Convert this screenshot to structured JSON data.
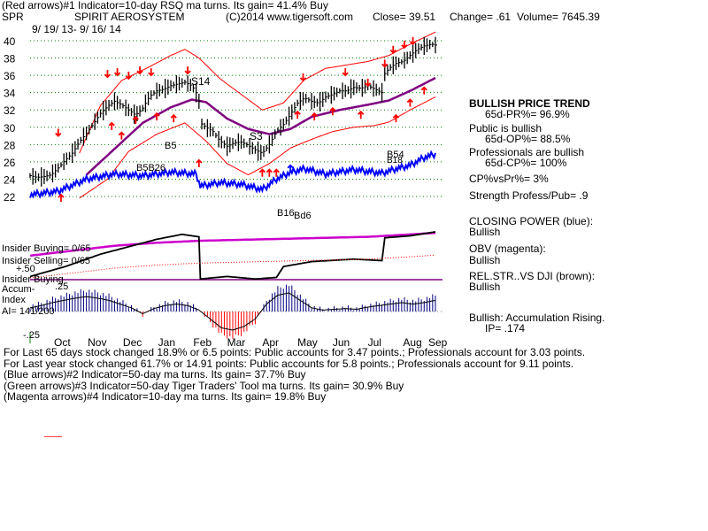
{
  "header": {
    "line1": "(Red arrows)#1 Indicator=10-day RSQ ma turns. Its gain= 41.4% Buy",
    "symbol": "SPR",
    "name": "SPIRIT AEROSYSTEM",
    "copyright": "(C)2014 www.tigersoft.com",
    "close": "Close=  39.51",
    "change": "Change= .61",
    "volume": "Volume= 7645.39",
    "dates": "9/ 19/ 13-  9/ 16/ 14"
  },
  "annotations": {
    "s14": "S14",
    "s3": "S3",
    "b5": "B5",
    "b5b26": "B5B26",
    "b54": "B54",
    "b18": "B18",
    "b_lower": "B16",
    "b_lower2": "Bd6"
  },
  "panel_labels": {
    "insider_buying_1": "Insider Buying= 0/65",
    "insider_selling": "Insider Selling= 0/65",
    "plus50": "+.50",
    "insider_buying_2": "Insider Buying",
    "accum_index_1": "Accum-",
    "accum_index_2": "Index",
    "plus25": ".25",
    "ai": "AI= 141/200",
    "minus25": "-.25"
  },
  "right_panel": [
    {
      "text": "BULLISH PRICE TREND",
      "bold": true
    },
    {
      "text": "65d-PR%= 96.9%",
      "indent": true
    },
    {
      "text": "Public is bullish"
    },
    {
      "text": "65d-OP%= 88.5%",
      "indent": true
    },
    {
      "text": "Professionals are bullish"
    },
    {
      "text": "65d-CP%= 100%",
      "indent": true
    },
    {
      "text": "CP%vsPr%=  3%"
    },
    {
      "text": "Strength Profess/Pub= .9"
    },
    {
      "text": "CLOSING POWER (blue):"
    },
    {
      "text": "Bullish"
    },
    {
      "text": "OBV (magenta):"
    },
    {
      "text": "Bullish"
    },
    {
      "text": "REL.STR..VS DJI (brown):"
    },
    {
      "text": "Bullish"
    },
    {
      "text": "Bullish: Accumulation Rising."
    },
    {
      "text": "IP=  .174",
      "indent": true
    }
  ],
  "bottom_text": [
    "For Last 65 days stock changed  18.9% or  6.5 points:  Public accounts for  3.47 points.;  Professionals account for  3.03 points.",
    "For Last year stock changed  61.7% or  14.91 points:  Public accounts for  5.8 points.;  Professionals account for  9.11 points.",
    "(Blue arrows)#2 Indicator=50-day ma turns. Its gain= 37.7% Buy",
    "(Green arrows)#3 Indicator=50-day Tiger Traders' Tool ma turns. Its gain= 30.9% Buy",
    "(Magenta arrows)#4 Indicator=10-day ma turns. Its gain= 19.8% Buy"
  ],
  "colors": {
    "price": "#000000",
    "closing_power": "#0000ff",
    "obv": "#cc00cc",
    "ma50": "#800080",
    "band": "#ff0000",
    "accum": "#000080",
    "grid": "#008000"
  },
  "chart_data": {
    "type": "line",
    "ylim": [
      21,
      41
    ],
    "y_ticks": [
      22,
      24,
      26,
      28,
      30,
      32,
      34,
      36,
      38,
      40
    ],
    "x_ticks": [
      "Oct",
      "Nov",
      "Dec",
      "Jan",
      "Feb",
      "Mar",
      "Apr",
      "May",
      "Jun",
      "Jul",
      "Aug",
      "Sep"
    ],
    "price_series": [
      [
        0,
        24.4
      ],
      [
        5,
        24.2
      ],
      [
        10,
        24.3
      ],
      [
        15,
        24.5
      ],
      [
        20,
        25.3
      ],
      [
        25,
        26.2
      ],
      [
        30,
        27.0
      ],
      [
        35,
        28.3
      ],
      [
        40,
        29.3
      ],
      [
        45,
        30.4
      ],
      [
        50,
        31.6
      ],
      [
        55,
        32.4
      ],
      [
        60,
        33.0
      ],
      [
        65,
        32.6
      ],
      [
        70,
        32.0
      ],
      [
        75,
        31.4
      ],
      [
        80,
        32.2
      ],
      [
        85,
        33.6
      ],
      [
        90,
        34.2
      ],
      [
        95,
        34.4
      ],
      [
        100,
        34.8
      ],
      [
        105,
        35.0
      ],
      [
        110,
        35.2
      ],
      [
        115,
        34.8
      ],
      [
        118,
        34.0
      ],
      [
        120,
        33.0
      ],
      [
        121,
        30.5
      ],
      [
        125,
        30.0
      ],
      [
        130,
        29.5
      ],
      [
        135,
        28.4
      ],
      [
        140,
        27.8
      ],
      [
        145,
        28.2
      ],
      [
        150,
        28.3
      ],
      [
        155,
        27.9
      ],
      [
        160,
        27.4
      ],
      [
        165,
        27.0
      ],
      [
        170,
        28.0
      ],
      [
        175,
        29.5
      ],
      [
        180,
        30.3
      ],
      [
        185,
        31.5
      ],
      [
        190,
        32.8
      ],
      [
        195,
        33.4
      ],
      [
        200,
        33.0
      ],
      [
        205,
        32.8
      ],
      [
        210,
        33.5
      ],
      [
        215,
        33.8
      ],
      [
        220,
        34.2
      ],
      [
        225,
        34.2
      ],
      [
        230,
        34.6
      ],
      [
        235,
        34.5
      ],
      [
        240,
        34.8
      ],
      [
        245,
        34.4
      ],
      [
        250,
        34.0
      ],
      [
        252,
        36.2
      ],
      [
        255,
        36.8
      ],
      [
        260,
        37.4
      ],
      [
        265,
        37.6
      ],
      [
        270,
        38.3
      ],
      [
        275,
        39.0
      ],
      [
        280,
        39.4
      ],
      [
        285,
        39.6
      ],
      [
        288,
        39.5
      ]
    ],
    "closing_power_series": [
      [
        0,
        22.2
      ],
      [
        20,
        22.6
      ],
      [
        40,
        24.0
      ],
      [
        60,
        24.6
      ],
      [
        80,
        24.4
      ],
      [
        100,
        24.8
      ],
      [
        118,
        24.6
      ],
      [
        121,
        23.2
      ],
      [
        135,
        23.6
      ],
      [
        150,
        23.4
      ],
      [
        165,
        22.8
      ],
      [
        175,
        24.0
      ],
      [
        185,
        24.8
      ],
      [
        195,
        25.2
      ],
      [
        210,
        24.6
      ],
      [
        230,
        25.1
      ],
      [
        250,
        24.7
      ],
      [
        260,
        25.2
      ],
      [
        270,
        25.6
      ],
      [
        280,
        26.5
      ],
      [
        288,
        26.9
      ]
    ],
    "ma50_series": [
      [
        40,
        24.5
      ],
      [
        60,
        27.5
      ],
      [
        80,
        30.5
      ],
      [
        100,
        32.3
      ],
      [
        115,
        33.2
      ],
      [
        125,
        32.9
      ],
      [
        140,
        31.0
      ],
      [
        155,
        29.8
      ],
      [
        170,
        29.2
      ],
      [
        185,
        29.8
      ],
      [
        200,
        31.2
      ],
      [
        220,
        32.0
      ],
      [
        240,
        32.6
      ],
      [
        255,
        33.1
      ],
      [
        270,
        34.2
      ],
      [
        288,
        35.7
      ]
    ],
    "band_upper_series": [
      [
        35,
        27.0
      ],
      [
        50,
        32.5
      ],
      [
        65,
        35.4
      ],
      [
        85,
        37.0
      ],
      [
        100,
        38.3
      ],
      [
        110,
        39.0
      ],
      [
        120,
        38.0
      ],
      [
        135,
        35.6
      ],
      [
        150,
        33.8
      ],
      [
        165,
        32.0
      ],
      [
        180,
        32.8
      ],
      [
        195,
        35.5
      ],
      [
        210,
        36.8
      ],
      [
        225,
        37.2
      ],
      [
        240,
        37.6
      ],
      [
        255,
        38.3
      ],
      [
        270,
        39.6
      ],
      [
        288,
        41.0
      ]
    ],
    "band_lower_series": [
      [
        35,
        21.8
      ],
      [
        55,
        24.0
      ],
      [
        70,
        27.2
      ],
      [
        90,
        29.2
      ],
      [
        110,
        30.5
      ],
      [
        125,
        28.4
      ],
      [
        140,
        25.8
      ],
      [
        155,
        24.5
      ],
      [
        170,
        25.8
      ],
      [
        185,
        27.6
      ],
      [
        200,
        28.6
      ],
      [
        215,
        29.5
      ],
      [
        230,
        30.0
      ],
      [
        245,
        30.2
      ],
      [
        255,
        30.6
      ],
      [
        270,
        32.0
      ],
      [
        288,
        33.5
      ]
    ],
    "obv_series": [
      [
        0,
        0.52
      ],
      [
        30,
        0.62
      ],
      [
        60,
        0.72
      ],
      [
        90,
        0.78
      ],
      [
        120,
        0.82
      ],
      [
        150,
        0.84
      ],
      [
        180,
        0.86
      ],
      [
        210,
        0.88
      ],
      [
        240,
        0.9
      ],
      [
        265,
        0.94
      ],
      [
        288,
        0.98
      ]
    ],
    "rel_strength_series": [
      [
        0,
        0.1
      ],
      [
        25,
        0.3
      ],
      [
        50,
        0.55
      ],
      [
        70,
        0.7
      ],
      [
        90,
        0.85
      ],
      [
        108,
        0.95
      ],
      [
        120,
        0.9
      ],
      [
        121,
        0.05
      ],
      [
        140,
        0.1
      ],
      [
        160,
        0.05
      ],
      [
        175,
        0.08
      ],
      [
        180,
        0.3
      ],
      [
        200,
        0.4
      ],
      [
        230,
        0.45
      ],
      [
        250,
        0.42
      ],
      [
        252,
        0.88
      ],
      [
        270,
        0.92
      ],
      [
        288,
        1.0
      ]
    ],
    "accum_bars": [
      [
        0,
        0.05
      ],
      [
        8,
        0.08
      ],
      [
        16,
        0.12
      ],
      [
        24,
        0.15
      ],
      [
        32,
        0.18
      ],
      [
        40,
        0.2
      ],
      [
        48,
        0.18
      ],
      [
        56,
        0.15
      ],
      [
        64,
        0.1
      ],
      [
        72,
        0.05
      ],
      [
        80,
        -0.03
      ],
      [
        88,
        0.04
      ],
      [
        96,
        0.08
      ],
      [
        104,
        0.1
      ],
      [
        112,
        0.08
      ],
      [
        120,
        0.02
      ],
      [
        128,
        -0.1
      ],
      [
        136,
        -0.22
      ],
      [
        144,
        -0.25
      ],
      [
        152,
        -0.2
      ],
      [
        160,
        -0.1
      ],
      [
        168,
        0.1
      ],
      [
        176,
        0.22
      ],
      [
        184,
        0.25
      ],
      [
        192,
        0.15
      ],
      [
        200,
        0.05
      ],
      [
        208,
        0.02
      ],
      [
        216,
        0.03
      ],
      [
        224,
        0.04
      ],
      [
        232,
        0.03
      ],
      [
        240,
        0.06
      ],
      [
        248,
        0.08
      ],
      [
        256,
        0.1
      ],
      [
        264,
        0.12
      ],
      [
        272,
        0.1
      ],
      [
        280,
        0.12
      ],
      [
        288,
        0.15
      ]
    ],
    "red_arrows_down": [
      [
        20,
        29.0
      ],
      [
        55,
        35.8
      ],
      [
        62,
        36.0
      ],
      [
        70,
        35.6
      ],
      [
        78,
        36.2
      ],
      [
        86,
        36.0
      ],
      [
        112,
        36.2
      ],
      [
        194,
        35.4
      ],
      [
        224,
        36.0
      ],
      [
        240,
        34.8
      ],
      [
        252,
        37.0
      ],
      [
        258,
        38.6
      ],
      [
        266,
        39.2
      ],
      [
        272,
        39.6
      ]
    ],
    "red_arrows_up": [
      [
        22,
        22.2
      ],
      [
        58,
        30.5
      ],
      [
        65,
        29.4
      ],
      [
        75,
        31.2
      ],
      [
        90,
        31.6
      ],
      [
        102,
        31.4
      ],
      [
        120,
        26.2
      ],
      [
        165,
        25.1
      ],
      [
        170,
        25.1
      ],
      [
        175,
        25.1
      ],
      [
        190,
        31.8
      ],
      [
        202,
        31.6
      ],
      [
        215,
        32.2
      ],
      [
        235,
        31.8
      ],
      [
        260,
        31.4
      ],
      [
        270,
        33.2
      ],
      [
        280,
        34.6
      ]
    ],
    "blue_arrows_up": [
      [
        185,
        25.6
      ]
    ]
  }
}
